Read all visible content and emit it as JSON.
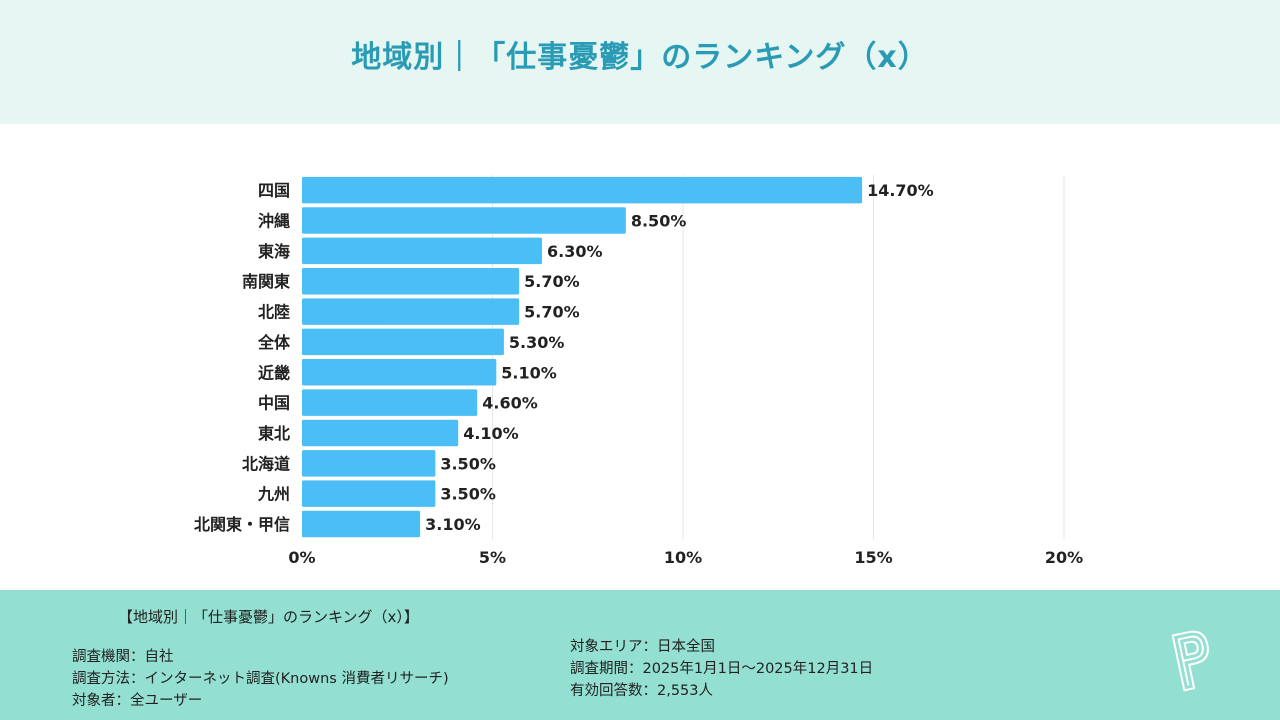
{
  "header": {
    "title": "地域別｜「仕事憂鬱」のランキング（x）"
  },
  "chart_data": {
    "type": "bar",
    "orientation": "horizontal",
    "title": "地域別｜「仕事憂鬱」のランキング（x）",
    "xlabel": "",
    "ylabel": "",
    "categories": [
      "四国",
      "沖縄",
      "東海",
      "南関東",
      "北陸",
      "全体",
      "近畿",
      "中国",
      "東北",
      "北海道",
      "九州",
      "北関東・甲信"
    ],
    "values": [
      14.7,
      8.5,
      6.3,
      5.7,
      5.7,
      5.3,
      5.1,
      4.6,
      4.1,
      3.5,
      3.5,
      3.1
    ],
    "value_labels": [
      "14.70%",
      "8.50%",
      "6.30%",
      "5.70%",
      "5.70%",
      "5.30%",
      "5.10%",
      "4.60%",
      "4.10%",
      "3.50%",
      "3.50%",
      "3.10%"
    ],
    "xlim": [
      0,
      20
    ],
    "xticks": [
      0,
      5,
      10,
      15,
      20
    ],
    "xtick_labels": [
      "0%",
      "5%",
      "10%",
      "15%",
      "20%"
    ],
    "grid": true,
    "legend": "none",
    "bar_color": "#4bbff5"
  },
  "footer": {
    "title": "【地域別｜「仕事憂鬱」のランキング（x）】",
    "left_lines": [
      "調査機関：自社",
      "調査方法：インターネット調査(Knowns 消費者リサーチ)",
      "対象者：全ユーザー"
    ],
    "right_lines": [
      "対象エリア：日本全国",
      "調査期間：2025年1月1日〜2025年12月31日",
      "有効回答数：2,553人"
    ],
    "logo_icon": "p-logo-icon"
  },
  "colors": {
    "title": "#2a9bb5",
    "header_bg": "#e6f6f3",
    "footer_bg": "#93dfd1",
    "bar": "#4bbff5",
    "grid": "#e6e6e6"
  }
}
